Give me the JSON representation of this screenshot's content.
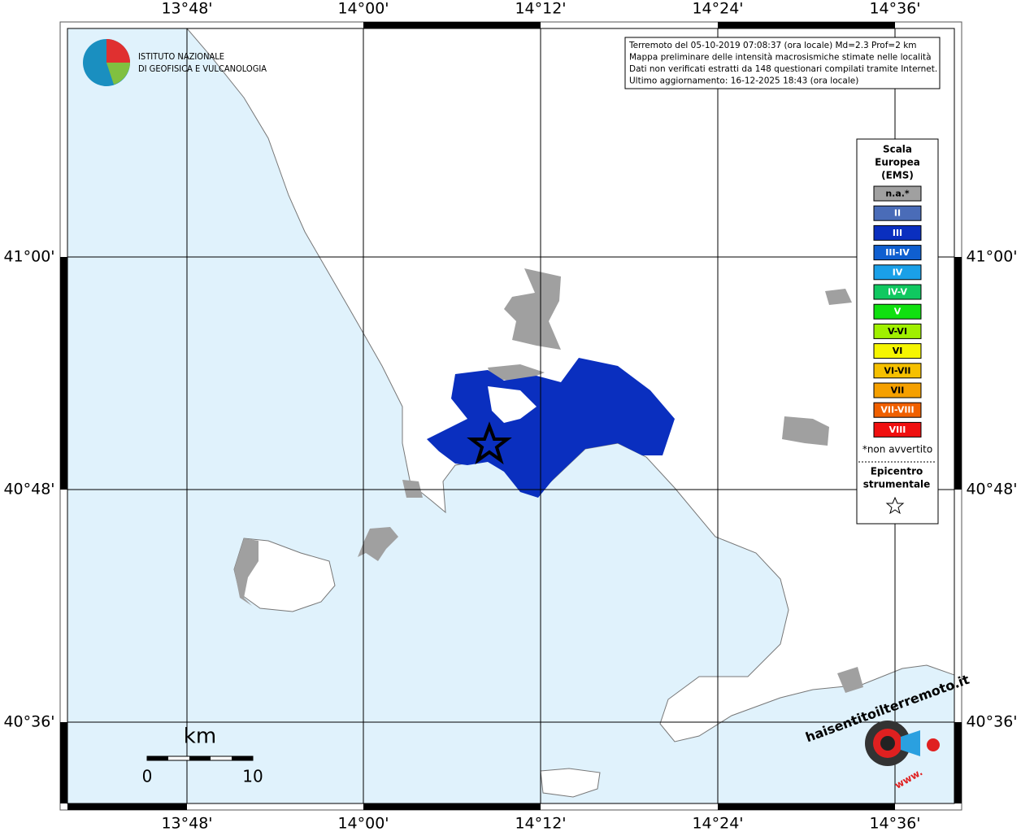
{
  "map": {
    "lon_labels": [
      "13°48'",
      "14°00'",
      "14°12'",
      "14°24'",
      "14°36'"
    ],
    "lat_labels": [
      "41°00'",
      "40°48'",
      "40°36'"
    ],
    "logo": {
      "line1": "ISTITUTO NAZIONALE",
      "line2": "DI GEOFISICA E VULCANOLOGIA"
    },
    "info": [
      "Terremoto del 05-10-2019 07:08:37 (ora locale) Md=2.3 Prof=2 km",
      "Mappa preliminare delle intensità macrosismiche stimate nelle località",
      "Dati non verificati estratti da 148 questionari compilati tramite Internet.",
      "Ultimo aggiornamento: 16-12-2025 18:43 (ora locale)"
    ],
    "legend": {
      "title": [
        "Scala",
        "Europea",
        "(EMS)"
      ],
      "items": [
        {
          "label": "n.a.*",
          "color": "#a0a0a0"
        },
        {
          "label": "II",
          "color": "#4a6cb8"
        },
        {
          "label": "III",
          "color": "#0a2fbf"
        },
        {
          "label": "III-IV",
          "color": "#0f5fd0"
        },
        {
          "label": "IV",
          "color": "#1aa0e8"
        },
        {
          "label": "IV-V",
          "color": "#10c860"
        },
        {
          "label": "V",
          "color": "#10e010"
        },
        {
          "label": "V-VI",
          "color": "#a0f000"
        },
        {
          "label": "VI",
          "color": "#f5f500"
        },
        {
          "label": "VI-VII",
          "color": "#f5c000"
        },
        {
          "label": "VII",
          "color": "#f5a000"
        },
        {
          "label": "VII-VIII",
          "color": "#f06000"
        },
        {
          "label": "VIII",
          "color": "#f01010"
        }
      ],
      "note": "*non avvertito",
      "epicenter": [
        "Epicentro",
        "strumentale"
      ]
    },
    "scale_bar": {
      "unit": "km",
      "start": "0",
      "end": "10"
    },
    "hsit_logo": {
      "text": "haisentitoilterremoto.it",
      "www": "www."
    }
  }
}
